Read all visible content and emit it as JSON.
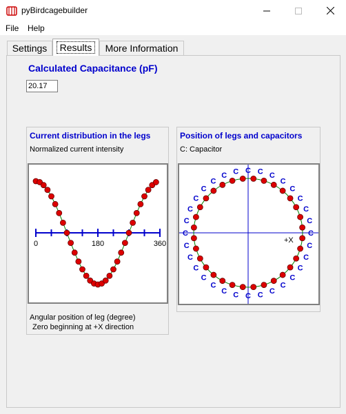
{
  "window": {
    "title": "pyBirdcagebuilder",
    "minimize_icon": "minimize-icon",
    "maximize_icon": "maximize-icon",
    "close_icon": "close-icon"
  },
  "menu": {
    "items": [
      "File",
      "Help"
    ]
  },
  "tabs": [
    {
      "label": "Settings",
      "active": false
    },
    {
      "label": "Results",
      "active": true
    },
    {
      "label": "More Information",
      "active": false
    }
  ],
  "results": {
    "heading": "Calculated Capacitance (pF)",
    "capacitance_value": "20.17"
  },
  "current_panel": {
    "title": "Current distribution in the legs",
    "subtitle": "Normalized current intensity",
    "footer_line1": "Angular position of leg (degree)",
    "footer_line2": "Zero beginning at +X direction",
    "chart_data": {
      "type": "line",
      "x": [
        0,
        11.25,
        22.5,
        33.75,
        45,
        56.25,
        67.5,
        78.75,
        90,
        101.25,
        112.5,
        123.75,
        135,
        146.25,
        157.5,
        168.75,
        180,
        191.25,
        202.5,
        213.75,
        225,
        236.25,
        247.5,
        258.75,
        270,
        281.25,
        292.5,
        303.75,
        315,
        326.25,
        337.5,
        348.75
      ],
      "xlim": [
        0,
        360
      ],
      "xticks": [
        "0",
        "180",
        "360"
      ],
      "ylim": [
        -1,
        1
      ],
      "point_color": "#dd0000",
      "line_color": "#008000",
      "axis_color": "#0000cc"
    }
  },
  "position_panel": {
    "title": "Position of legs and capacitors",
    "subtitle": "C: Capacitor",
    "axis_label": "+X",
    "capacitor_label": "C",
    "leg_count": 32,
    "point_color": "#dd0000",
    "line_color": "#008000",
    "axis_color": "#0000cc"
  }
}
